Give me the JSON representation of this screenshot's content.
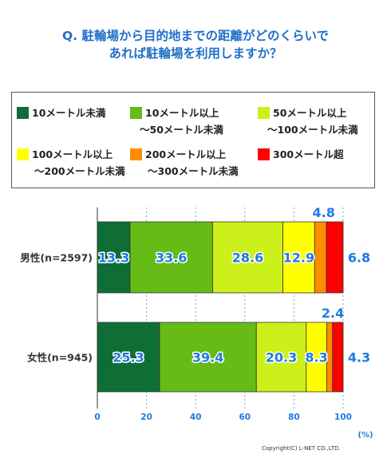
{
  "title_lines": [
    "Q. 駐輪場から目的地までの距離がどのくらいで",
    "あれば駐輪場を利用しますか？"
  ],
  "legend": [
    {
      "l1": "10メートル未満",
      "l2": "",
      "color": "#0e6e36"
    },
    {
      "l1": "10メートル以上",
      "l2": "～50メートル未満",
      "color": "#66bb16"
    },
    {
      "l1": "50メートル以上",
      "l2": "～100メートル未満",
      "color": "#ccf01a"
    },
    {
      "l1": "100メートル以上",
      "l2": "～200メートル未満",
      "color": "#ffff00"
    },
    {
      "l1": "200メートル以上",
      "l2": "～300メートル未満",
      "color": "#ff8c00"
    },
    {
      "l1": "300メートル超",
      "l2": "",
      "color": "#ff0000"
    }
  ],
  "chart_data": {
    "type": "bar",
    "orientation": "horizontal",
    "stacked": true,
    "categories": [
      "男性(n=2597)",
      "女性(n=945)"
    ],
    "series": [
      {
        "name": "10メートル未満",
        "values": [
          13.3,
          25.3
        ]
      },
      {
        "name": "10メートル以上～50メートル未満",
        "values": [
          33.6,
          39.4
        ]
      },
      {
        "name": "50メートル以上～100メートル未満",
        "values": [
          28.6,
          20.3
        ]
      },
      {
        "name": "100メートル以上～200メートル未満",
        "values": [
          12.9,
          8.3
        ]
      },
      {
        "name": "200メートル以上～300メートル未満",
        "values": [
          4.8,
          2.4
        ]
      },
      {
        "name": "300メートル超",
        "values": [
          6.8,
          4.3
        ]
      }
    ],
    "xlim": [
      0,
      100
    ],
    "xticks": [
      0,
      20,
      40,
      60,
      80,
      100
    ],
    "x_unit": "(%)",
    "grid": true,
    "legend_position": "top"
  },
  "copyright": "Copyright(C) L-NET CO.,LTD."
}
